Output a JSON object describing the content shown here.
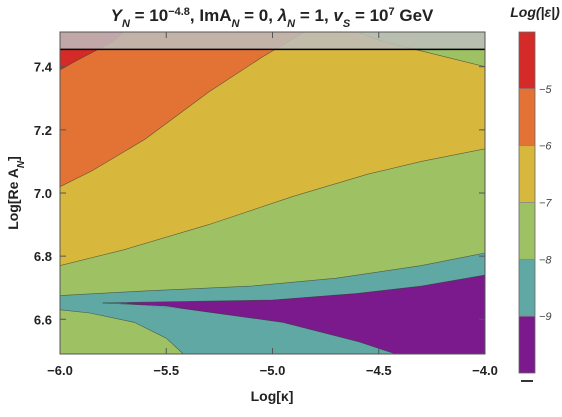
{
  "chart_data": {
    "type": "contour",
    "title_parts": [
      {
        "t": "Y",
        "i": true
      },
      {
        "t": "N",
        "sub": true,
        "i": true
      },
      {
        "t": " = 10"
      },
      {
        "t": "−4.8",
        "sup": true
      },
      {
        "t": ", ImA"
      },
      {
        "t": "N",
        "sub": true,
        "i": true
      },
      {
        "t": " = 0, "
      },
      {
        "t": "λ",
        "i": true
      },
      {
        "t": "N",
        "sub": true,
        "i": true
      },
      {
        "t": " = 1, "
      },
      {
        "t": "v",
        "i": true
      },
      {
        "t": "S",
        "sub": true,
        "i": true
      },
      {
        "t": " = 10"
      },
      {
        "t": "7",
        "sup": true
      },
      {
        "t": " GeV"
      }
    ],
    "xlabel": "Log[κ]",
    "ylabel": "Log[Re A",
    "ylabel_sub": "N",
    "ylabel_end": "]",
    "xlim": [
      -6.0,
      -4.0
    ],
    "ylim": [
      6.49,
      7.51
    ],
    "xticks": [
      -6.0,
      -5.5,
      -5.0,
      -4.5,
      -4.0
    ],
    "xtick_labels": [
      "−6.0",
      "−5.5",
      "−5.0",
      "−4.5",
      "−4.0"
    ],
    "yticks": [
      6.6,
      6.8,
      7.0,
      7.2,
      7.4
    ],
    "ytick_labels": [
      "6.6",
      "6.8",
      "7.0",
      "7.2",
      "7.4"
    ],
    "horizontal_line_y": 7.455,
    "excluded_band": {
      "from": 7.455,
      "to": 7.51,
      "color": "#bdbdbd"
    },
    "contour_levels": [
      -10,
      -9,
      -8,
      -7,
      -6,
      -5,
      -4
    ],
    "colors": {
      "lt_m9": "#7b1a8c",
      "m9_m8": "#5fa8a3",
      "m8_m7": "#9dc163",
      "m7_m6": "#d8b73d",
      "m6_m5": "#e27334",
      "gt_m5": "#d42a28"
    },
    "regions": [
      {
        "name": "m8_m7 lower-left",
        "points": [
          [
            -6.0,
            6.49
          ],
          [
            -5.42,
            6.49
          ],
          [
            -5.5,
            6.54
          ],
          [
            -5.65,
            6.59
          ],
          [
            -5.86,
            6.62
          ],
          [
            -6.0,
            6.63
          ]
        ]
      },
      {
        "name": "m9_m8 lower band",
        "points": [
          [
            -6.0,
            6.63
          ],
          [
            -5.86,
            6.62
          ],
          [
            -5.65,
            6.59
          ],
          [
            -5.5,
            6.54
          ],
          [
            -5.42,
            6.49
          ],
          [
            -4.42,
            6.49
          ],
          [
            -4.0,
            6.49
          ],
          [
            -4.0,
            6.81
          ],
          [
            -4.3,
            6.77
          ],
          [
            -4.7,
            6.73
          ],
          [
            -5.1,
            6.705
          ],
          [
            -5.6,
            6.69
          ],
          [
            -6.0,
            6.675
          ]
        ]
      },
      {
        "name": "lt_m9 wedge",
        "points": [
          [
            -5.74,
            6.652
          ],
          [
            -5.0,
            6.661
          ],
          [
            -4.6,
            6.682
          ],
          [
            -4.3,
            6.705
          ],
          [
            -4.0,
            6.74
          ],
          [
            -4.0,
            6.49
          ],
          [
            -4.42,
            6.49
          ],
          [
            -4.6,
            6.53
          ],
          [
            -4.95,
            6.59
          ],
          [
            -5.4,
            6.632
          ]
        ]
      },
      {
        "name": "m9_m8 wedge tip",
        "points": [
          [
            -5.8,
            6.652
          ],
          [
            -5.74,
            6.652
          ],
          [
            -5.4,
            6.632
          ],
          [
            -5.5,
            6.642
          ]
        ]
      },
      {
        "name": "m7_m6 band",
        "points": [
          [
            -6.0,
            6.77
          ],
          [
            -5.7,
            6.82
          ],
          [
            -5.3,
            6.9
          ],
          [
            -4.9,
            6.99
          ],
          [
            -4.55,
            7.06
          ],
          [
            -4.3,
            7.1
          ],
          [
            -4.0,
            7.14
          ],
          [
            -4.0,
            7.4
          ],
          [
            -4.3,
            7.45
          ],
          [
            -4.48,
            7.48
          ],
          [
            -4.6,
            7.51
          ],
          [
            -4.85,
            7.51
          ],
          [
            -5.05,
            7.43
          ],
          [
            -5.3,
            7.32
          ],
          [
            -5.6,
            7.17
          ],
          [
            -5.85,
            7.07
          ],
          [
            -6.0,
            7.02
          ]
        ]
      },
      {
        "name": "m6_m5 band",
        "points": [
          [
            -6.0,
            7.02
          ],
          [
            -5.85,
            7.07
          ],
          [
            -5.6,
            7.17
          ],
          [
            -5.3,
            7.32
          ],
          [
            -5.05,
            7.43
          ],
          [
            -4.85,
            7.51
          ],
          [
            -5.7,
            7.51
          ],
          [
            -5.75,
            7.48
          ],
          [
            -5.92,
            7.42
          ],
          [
            -6.0,
            7.39
          ]
        ]
      },
      {
        "name": "gt_m5 corner",
        "points": [
          [
            -6.0,
            7.39
          ],
          [
            -5.92,
            7.42
          ],
          [
            -5.75,
            7.48
          ],
          [
            -5.7,
            7.51
          ],
          [
            -6.0,
            7.51
          ]
        ]
      }
    ],
    "boundaries": [
      [
        [
          -6.0,
          6.63
        ],
        [
          -5.86,
          6.62
        ],
        [
          -5.65,
          6.59
        ],
        [
          -5.5,
          6.54
        ],
        [
          -5.42,
          6.49
        ]
      ],
      [
        [
          -6.0,
          6.675
        ],
        [
          -5.6,
          6.69
        ],
        [
          -5.1,
          6.705
        ],
        [
          -4.7,
          6.73
        ],
        [
          -4.3,
          6.77
        ],
        [
          -4.0,
          6.81
        ]
      ],
      [
        [
          -5.8,
          6.652
        ],
        [
          -5.0,
          6.661
        ],
        [
          -4.6,
          6.682
        ],
        [
          -4.3,
          6.705
        ],
        [
          -4.0,
          6.74
        ]
      ],
      [
        [
          -5.8,
          6.652
        ],
        [
          -5.5,
          6.642
        ],
        [
          -5.4,
          6.632
        ],
        [
          -4.95,
          6.59
        ],
        [
          -4.6,
          6.53
        ],
        [
          -4.42,
          6.49
        ]
      ],
      [
        [
          -6.0,
          6.77
        ],
        [
          -5.7,
          6.82
        ],
        [
          -5.3,
          6.9
        ],
        [
          -4.9,
          6.99
        ],
        [
          -4.55,
          7.06
        ],
        [
          -4.3,
          7.1
        ],
        [
          -4.0,
          7.14
        ]
      ],
      [
        [
          -6.0,
          7.02
        ],
        [
          -5.85,
          7.07
        ],
        [
          -5.6,
          7.17
        ],
        [
          -5.3,
          7.32
        ],
        [
          -5.05,
          7.43
        ],
        [
          -4.85,
          7.51
        ]
      ],
      [
        [
          -4.0,
          7.4
        ],
        [
          -4.3,
          7.45
        ],
        [
          -4.48,
          7.48
        ],
        [
          -4.6,
          7.51
        ]
      ],
      [
        [
          -6.0,
          7.39
        ],
        [
          -5.92,
          7.42
        ],
        [
          -5.75,
          7.48
        ],
        [
          -5.7,
          7.51
        ]
      ]
    ],
    "colorbar": {
      "label": "Log(|ε|)",
      "range": [
        -10,
        -4
      ],
      "ticks": [
        -5,
        -6,
        -7,
        -8,
        -9
      ],
      "tick_labels": [
        "−5",
        "−6",
        "−7",
        "−8",
        "−9"
      ],
      "bands": [
        {
          "from": -5,
          "to": -4,
          "color": "#d42a28"
        },
        {
          "from": -6,
          "to": -5,
          "color": "#e27334"
        },
        {
          "from": -7,
          "to": -6,
          "color": "#d8b73d"
        },
        {
          "from": -8,
          "to": -7,
          "color": "#9dc163"
        },
        {
          "from": -9,
          "to": -8,
          "color": "#5fa8a3"
        },
        {
          "from": -10,
          "to": -9,
          "color": "#7b1a8c"
        }
      ]
    }
  }
}
